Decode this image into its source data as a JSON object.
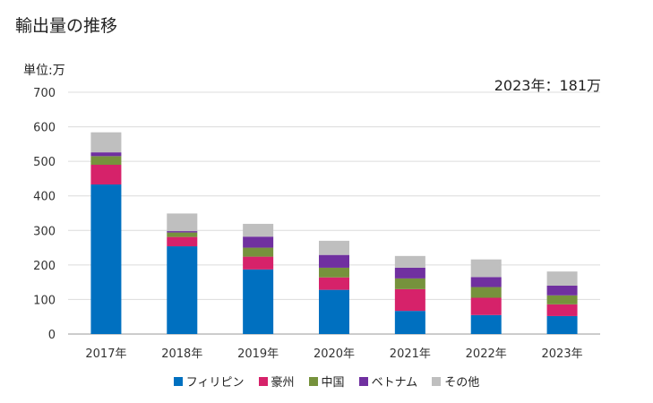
{
  "header": {
    "title": "輸出量の推移"
  },
  "chart_data": {
    "type": "bar",
    "stacked": true,
    "title": "輸出量の推移",
    "ylabel": "単位:万",
    "annotation": "2023年：181万",
    "ylim": [
      0,
      700
    ],
    "yticks": [
      0,
      100,
      200,
      300,
      400,
      500,
      600,
      700
    ],
    "categories": [
      "2017年",
      "2018年",
      "2019年",
      "2020年",
      "2021年",
      "2022年",
      "2023年"
    ],
    "series": [
      {
        "name": "フィリピン",
        "color": "#0070c0",
        "values": [
          433,
          254,
          187,
          128,
          67,
          55,
          52
        ]
      },
      {
        "name": "豪州",
        "color": "#d6226a",
        "values": [
          57,
          27,
          37,
          36,
          63,
          50,
          34
        ]
      },
      {
        "name": "中国",
        "color": "#76923c",
        "values": [
          25,
          13,
          26,
          28,
          31,
          31,
          26
        ]
      },
      {
        "name": "ベトナム",
        "color": "#7030a0",
        "values": [
          11,
          4,
          32,
          37,
          31,
          29,
          28
        ]
      },
      {
        "name": "その他",
        "color": "#bfbfbf",
        "values": [
          58,
          51,
          37,
          41,
          34,
          51,
          41
        ]
      }
    ],
    "grid": true,
    "legend_position": "bottom"
  }
}
